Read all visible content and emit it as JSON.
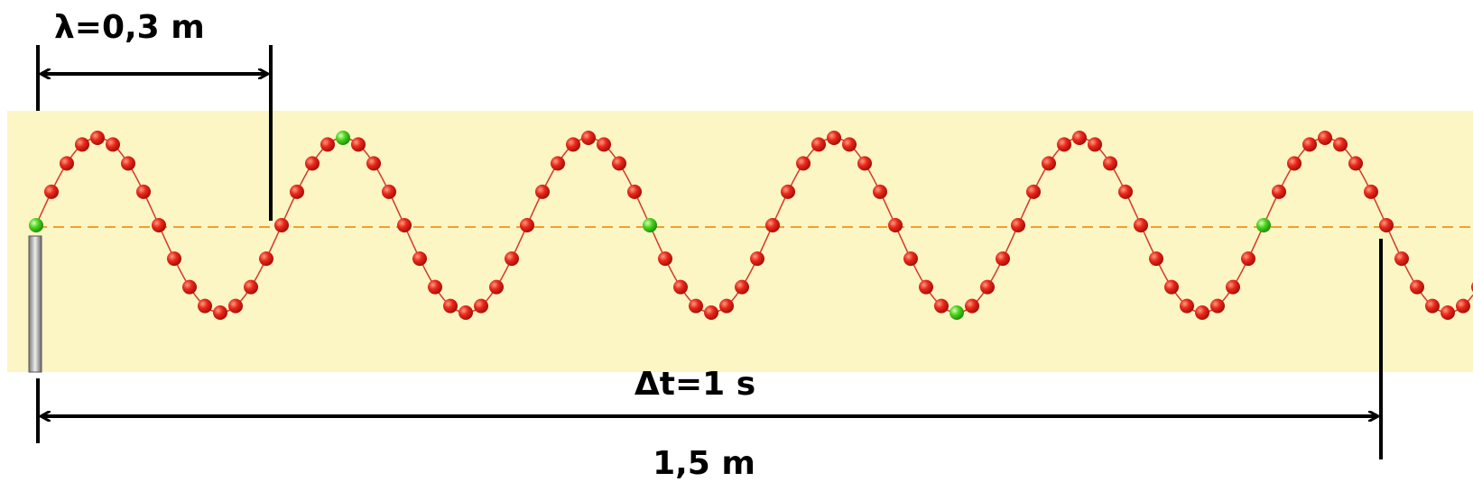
{
  "labels": {
    "wavelength": "λ=0,3 m",
    "time": "Δt=1 s",
    "distance": "1,5 m"
  }
}
